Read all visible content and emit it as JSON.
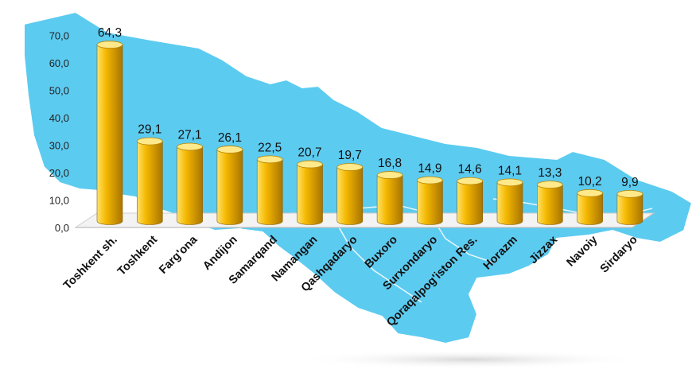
{
  "chart_data": {
    "type": "bar",
    "categories": [
      "Toshkent sh.",
      "Toshkent",
      "Farg'ona",
      "Andijon",
      "Samarqand",
      "Namangan",
      "Qashqadaryo",
      "Buxoro",
      "Surxondaryo",
      "Qoraqalpog'iston Res.",
      "Horazm",
      "Jizzax",
      "Navoiy",
      "Sirdaryo"
    ],
    "values": [
      64.3,
      29.1,
      27.1,
      26.1,
      22.5,
      20.7,
      19.7,
      16.8,
      14.9,
      14.6,
      14.1,
      13.3,
      10.2,
      9.9
    ],
    "value_labels": [
      "64,3",
      "29,1",
      "27,1",
      "26,1",
      "22,5",
      "20,7",
      "19,7",
      "16,8",
      "14,9",
      "14,6",
      "14,1",
      "13,3",
      "10,2",
      "9,9"
    ],
    "yticks": [
      "0,0",
      "10,0",
      "20,0",
      "30,0",
      "40,0",
      "50,0",
      "60,0",
      "70,0"
    ],
    "ylim": [
      0,
      70
    ],
    "title": "",
    "xlabel": "",
    "ylabel": "",
    "grid": false,
    "bar_shape": "3d-cylinder",
    "colors": {
      "bar_light": "#FFE26A",
      "bar_mid": "#F5B800",
      "bar_dark": "#A87400",
      "bar_top": "#FFE98A",
      "map_fill": "#5CCBF0",
      "map_border": "#FFFFFF",
      "floor": "#F2F2F2"
    }
  }
}
